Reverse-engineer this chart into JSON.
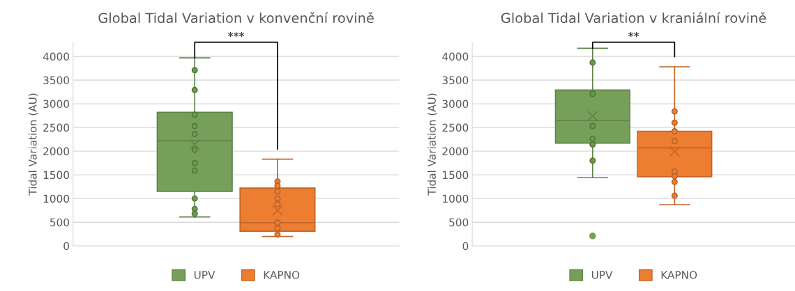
{
  "chart_data": [
    {
      "type": "box",
      "title": "Global Tidal Variation v konvenční rovině",
      "ylabel": "Tidal Variation (AU)",
      "categories": [
        null
      ],
      "ylim": [
        0,
        4300
      ],
      "yticks": [
        0,
        500,
        1000,
        1500,
        2000,
        2500,
        3000,
        3500,
        4000
      ],
      "grid": "y",
      "legend": "bottom",
      "annotations": [
        "***"
      ],
      "series": [
        {
          "name": "UPV",
          "color": "#76a05a",
          "boxes": [
            {
              "low": 610,
              "q1": 1150,
              "median": 2220,
              "q3": 2820,
              "high": 3970,
              "mean": 2140
            }
          ]
        },
        {
          "name": "KAPNO",
          "color": "#ed7d31",
          "boxes": [
            {
              "low": 200,
              "q1": 310,
              "median": 490,
              "q3": 1220,
              "high": 1830,
              "mean": 750
            }
          ]
        },
        {
          "type": "scatter",
          "x": [
            null,
            null,
            null,
            null,
            null,
            null,
            null,
            null,
            null,
            null,
            null
          ],
          "color": "#6a9a4a",
          "values": [
            3710,
            3290,
            2770,
            2530,
            2360,
            2030,
            1750,
            1590,
            1000,
            780,
            680
          ]
        },
        {
          "type": "scatter",
          "x": [
            null,
            null,
            null,
            null,
            null,
            null,
            null,
            null
          ],
          "color": "#ed7d31",
          "values": [
            1360,
            1270,
            1150,
            1000,
            880,
            490,
            370,
            240
          ]
        }
      ]
    },
    {
      "type": "box",
      "title": "Global Tidal Variation v kraniální rovině",
      "ylabel": "Tidal Variation (AU)",
      "categories": [
        null
      ],
      "ylim": [
        0,
        4300
      ],
      "yticks": [
        0,
        500,
        1000,
        1500,
        2000,
        2500,
        3000,
        3500,
        4000
      ],
      "grid": "y",
      "legend": "bottom",
      "annotations": [
        "**"
      ],
      "series": [
        {
          "name": "UPV",
          "color": "#76a05a",
          "boxes": [
            {
              "low": 1440,
              "q1": 2170,
              "median": 2650,
              "q3": 3290,
              "high": 4170,
              "mean": 2740,
              "outliers": [
                210
              ]
            }
          ]
        },
        {
          "name": "KAPNO",
          "color": "#ed7d31",
          "boxes": [
            {
              "low": 870,
              "q1": 1460,
              "median": 2070,
              "q3": 2420,
              "high": 3780,
              "mean": 1990
            }
          ]
        },
        {
          "type": "scatter",
          "x": [
            null,
            null,
            null,
            null,
            null,
            null
          ],
          "color": "#6a9a4a",
          "values": [
            3870,
            3210,
            2530,
            2260,
            2140,
            1800
          ]
        },
        {
          "type": "scatter",
          "x": [
            null,
            null,
            null,
            null,
            null,
            null,
            null,
            null
          ],
          "color": "#ed7d31",
          "values": [
            2840,
            2600,
            2420,
            2210,
            1570,
            1470,
            1350,
            1060
          ]
        }
      ]
    }
  ]
}
